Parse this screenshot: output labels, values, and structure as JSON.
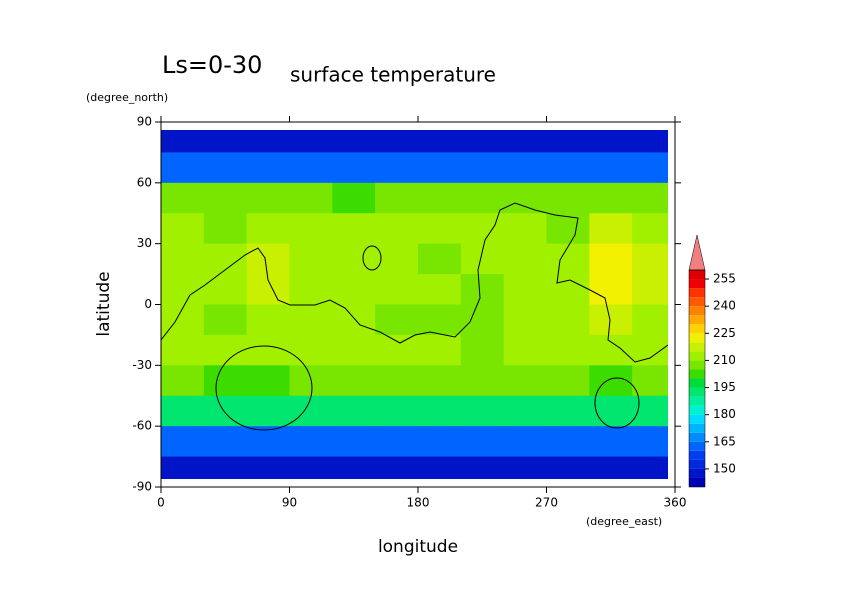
{
  "chart_data": {
    "type": "contour",
    "title": "Ls=0-30",
    "subtitle": "surface temperature",
    "x_label": "longitude",
    "y_label": "latitude",
    "x_unit": "(degree_east)",
    "y_unit": "(degree_north)",
    "xlim": [
      0,
      360
    ],
    "ylim": [
      -90,
      90
    ],
    "xticks": [
      0,
      90,
      180,
      270,
      360
    ],
    "yticks": [
      90,
      60,
      30,
      0,
      -30,
      -60,
      -90
    ],
    "x": [
      15,
      45,
      75,
      105,
      135,
      165,
      195,
      225,
      255,
      285,
      315,
      345
    ],
    "y": [
      82.5,
      67.5,
      52.5,
      37.5,
      22.5,
      7.5,
      -7.5,
      -22.5,
      -37.5,
      -52.5,
      -67.5,
      -82.5
    ],
    "z": [
      [
        148,
        148,
        148,
        148,
        148,
        148,
        148,
        148,
        148,
        148,
        148,
        148
      ],
      [
        160,
        160,
        160,
        160,
        160,
        162,
        162,
        162,
        162,
        162,
        160,
        160
      ],
      [
        205,
        206,
        205,
        205,
        204,
        205,
        205,
        206,
        206,
        205,
        208,
        206
      ],
      [
        210,
        208,
        212,
        211,
        210,
        211,
        210,
        212,
        211,
        208,
        218,
        214
      ],
      [
        211,
        212,
        216,
        212,
        210,
        211,
        209,
        211,
        210,
        213,
        222,
        216
      ],
      [
        213,
        211,
        219,
        213,
        211,
        210,
        210,
        208,
        211,
        214,
        224,
        218
      ],
      [
        210,
        209,
        212,
        211,
        210,
        209,
        208,
        208,
        211,
        214,
        216,
        212
      ],
      [
        211,
        212,
        213,
        212,
        211,
        210,
        210,
        209,
        210,
        211,
        212,
        211
      ],
      [
        206,
        204,
        204,
        205,
        205,
        205,
        205,
        205,
        205,
        205,
        204,
        205
      ],
      [
        190,
        191,
        191,
        191,
        191,
        191,
        190,
        190,
        190,
        190,
        190,
        190
      ],
      [
        160,
        160,
        160,
        160,
        160,
        160,
        160,
        160,
        160,
        160,
        160,
        160
      ],
      [
        148,
        148,
        148,
        148,
        148,
        148,
        148,
        148,
        148,
        148,
        148,
        148
      ]
    ],
    "levels": [
      140,
      145,
      150,
      155,
      160,
      165,
      170,
      175,
      180,
      185,
      190,
      195,
      200,
      205,
      210,
      215,
      220,
      225,
      230,
      235,
      240,
      245,
      250,
      255,
      260
    ],
    "colors": [
      "#0000b4",
      "#0014c8",
      "#0028dc",
      "#003cf0",
      "#0064ff",
      "#008cff",
      "#00b4ff",
      "#00dcff",
      "#00f0d2",
      "#00f0a0",
      "#00e66e",
      "#00dc3c",
      "#3cdc00",
      "#78e600",
      "#a0f000",
      "#c8f000",
      "#f0f000",
      "#ffd200",
      "#ffaa00",
      "#ff8200",
      "#ff5a00",
      "#ff3200",
      "#f00000",
      "#dc0000"
    ],
    "extend_color": "#f08080",
    "colorbar_ticks": [
      150,
      165,
      180,
      195,
      210,
      225,
      240,
      255
    ]
  }
}
